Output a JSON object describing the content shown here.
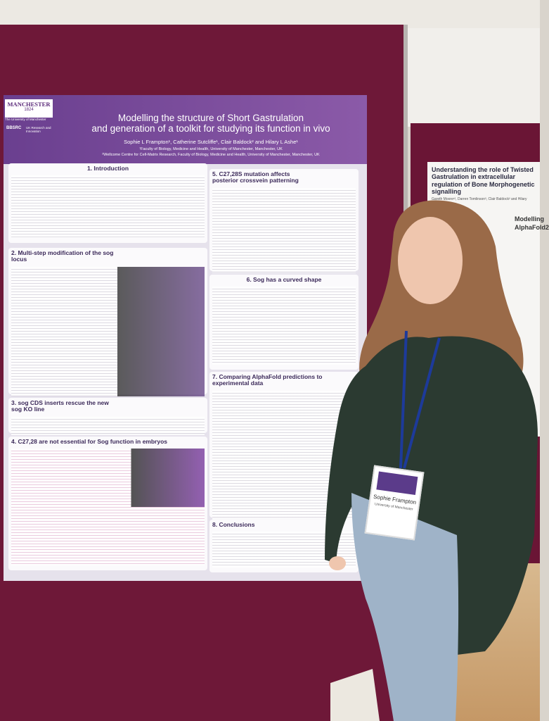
{
  "poster": {
    "logo": {
      "name": "MANCHESTER",
      "year": "1824",
      "university": "The University of Manchester",
      "funder": "BBSRC",
      "funder_sub": "UK Research and Innovation"
    },
    "title": [
      "Modelling the structure of Short Gastrulation",
      "and generation of a toolkit for studying its function in vivo"
    ],
    "authors": "Sophie L Frampton¹, Catherine Sutcliffe¹, Clair Baldock² and Hilary L Ashe¹",
    "affiliations": [
      "¹Faculty of Biology, Medicine and Health, University of Manchester, Manchester, UK",
      "²Wellcome Centre for Cell-Matrix Research, Faculty of Biology, Medicine and Health, University of Manchester, Manchester, UK"
    ],
    "sections": [
      "1. Introduction",
      "2. Multi-step modification of the sog locus",
      "3. sog CDS inserts rescue the new sog KO line",
      "4. C27,28 are not essential for Sog function in embryos",
      "5. C27,28S mutation affects posterior crossvein patterning",
      "6. Sog has a curved shape",
      "7. Comparing AlphaFold predictions to experimental data",
      "8. Conclusions"
    ]
  },
  "second_poster": {
    "title": "Understanding the role of Twisted Gastrulation in extracellular regulation of Bone Morphogenetic signalling",
    "authors": "Gareth Moore¹², Darren Tomlinson³, Clair Baldock² and Hilary Ashe¹",
    "fragments": [
      "Modelling",
      "AlphaFold2"
    ]
  },
  "badge": {
    "name": "Sophie Frampton",
    "organisation": "University of Manchester"
  }
}
